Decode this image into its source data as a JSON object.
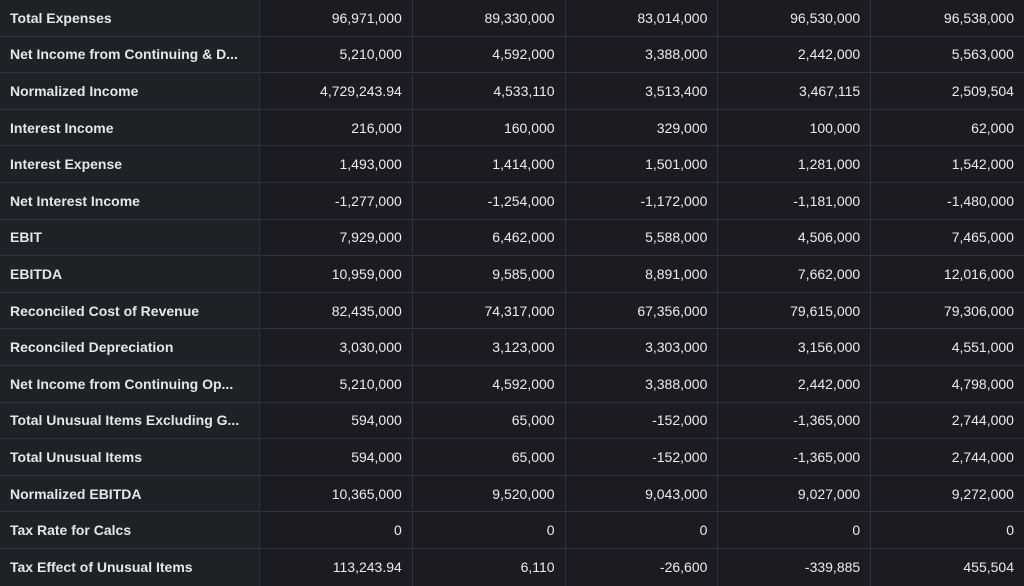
{
  "table": {
    "rows": [
      {
        "label": "Total Expenses",
        "values": [
          "96,971,000",
          "89,330,000",
          "83,014,000",
          "96,530,000",
          "96,538,000"
        ]
      },
      {
        "label": "Net Income from Continuing & D...",
        "values": [
          "5,210,000",
          "4,592,000",
          "3,388,000",
          "2,442,000",
          "5,563,000"
        ]
      },
      {
        "label": "Normalized Income",
        "values": [
          "4,729,243.94",
          "4,533,110",
          "3,513,400",
          "3,467,115",
          "2,509,504"
        ]
      },
      {
        "label": "Interest Income",
        "values": [
          "216,000",
          "160,000",
          "329,000",
          "100,000",
          "62,000"
        ]
      },
      {
        "label": "Interest Expense",
        "values": [
          "1,493,000",
          "1,414,000",
          "1,501,000",
          "1,281,000",
          "1,542,000"
        ]
      },
      {
        "label": "Net Interest Income",
        "values": [
          "-1,277,000",
          "-1,254,000",
          "-1,172,000",
          "-1,181,000",
          "-1,480,000"
        ]
      },
      {
        "label": "EBIT",
        "values": [
          "7,929,000",
          "6,462,000",
          "5,588,000",
          "4,506,000",
          "7,465,000"
        ]
      },
      {
        "label": "EBITDA",
        "values": [
          "10,959,000",
          "9,585,000",
          "8,891,000",
          "7,662,000",
          "12,016,000"
        ]
      },
      {
        "label": "Reconciled Cost of Revenue",
        "values": [
          "82,435,000",
          "74,317,000",
          "67,356,000",
          "79,615,000",
          "79,306,000"
        ]
      },
      {
        "label": "Reconciled Depreciation",
        "values": [
          "3,030,000",
          "3,123,000",
          "3,303,000",
          "3,156,000",
          "4,551,000"
        ]
      },
      {
        "label": "Net Income from Continuing Op...",
        "values": [
          "5,210,000",
          "4,592,000",
          "3,388,000",
          "2,442,000",
          "4,798,000"
        ]
      },
      {
        "label": "Total Unusual Items Excluding G...",
        "values": [
          "594,000",
          "65,000",
          "-152,000",
          "-1,365,000",
          "2,744,000"
        ]
      },
      {
        "label": "Total Unusual Items",
        "values": [
          "594,000",
          "65,000",
          "-152,000",
          "-1,365,000",
          "2,744,000"
        ]
      },
      {
        "label": "Normalized EBITDA",
        "values": [
          "10,365,000",
          "9,520,000",
          "9,043,000",
          "9,027,000",
          "9,272,000"
        ]
      },
      {
        "label": "Tax Rate for Calcs",
        "values": [
          "0",
          "0",
          "0",
          "0",
          "0"
        ]
      },
      {
        "label": "Tax Effect of Unusual Items",
        "values": [
          "113,243.94",
          "6,110",
          "-26,600",
          "-339,885",
          "455,504"
        ]
      }
    ]
  }
}
